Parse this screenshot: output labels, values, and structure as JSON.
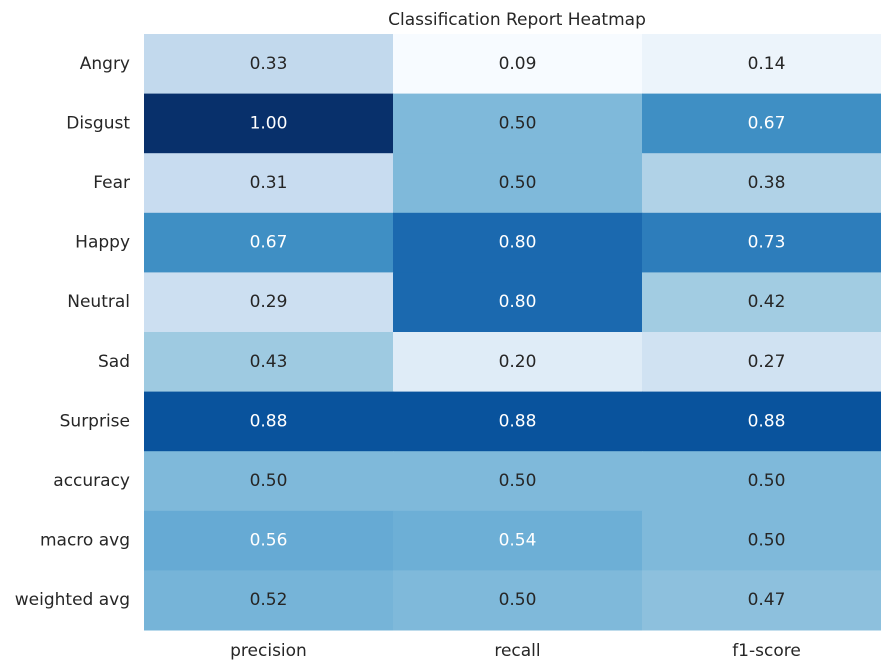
{
  "chart_data": {
    "type": "heatmap",
    "title": "Classification Report Heatmap",
    "rows": [
      "Angry",
      "Disgust",
      "Fear",
      "Happy",
      "Neutral",
      "Sad",
      "Surprise",
      "accuracy",
      "macro avg",
      "weighted avg"
    ],
    "columns": [
      "precision",
      "recall",
      "f1-score"
    ],
    "values": [
      [
        0.33,
        0.09,
        0.14
      ],
      [
        1.0,
        0.5,
        0.67
      ],
      [
        0.31,
        0.5,
        0.38
      ],
      [
        0.67,
        0.8,
        0.73
      ],
      [
        0.29,
        0.8,
        0.42
      ],
      [
        0.43,
        0.2,
        0.27
      ],
      [
        0.88,
        0.88,
        0.88
      ],
      [
        0.5,
        0.5,
        0.5
      ],
      [
        0.56,
        0.54,
        0.5
      ],
      [
        0.52,
        0.5,
        0.47
      ]
    ],
    "value_labels": [
      [
        "0.33",
        "0.09",
        "0.14"
      ],
      [
        "1.00",
        "0.50",
        "0.67"
      ],
      [
        "0.31",
        "0.50",
        "0.38"
      ],
      [
        "0.67",
        "0.80",
        "0.73"
      ],
      [
        "0.29",
        "0.80",
        "0.42"
      ],
      [
        "0.43",
        "0.20",
        "0.27"
      ],
      [
        "0.88",
        "0.88",
        "0.88"
      ],
      [
        "0.50",
        "0.50",
        "0.50"
      ],
      [
        "0.56",
        "0.54",
        "0.50"
      ],
      [
        "0.52",
        "0.50",
        "0.47"
      ]
    ],
    "colormap": "Blues"
  }
}
